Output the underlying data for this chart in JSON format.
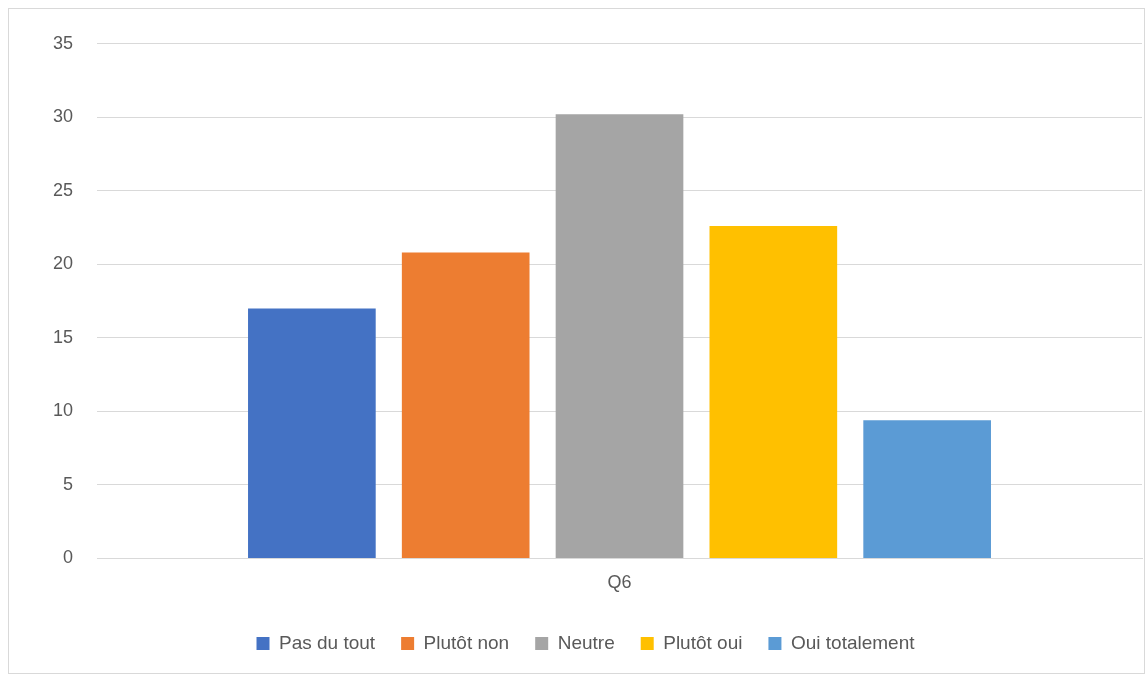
{
  "chart_data": {
    "type": "bar",
    "categories": [
      "Q6"
    ],
    "series": [
      {
        "name": "Pas du tout",
        "color": "#4472c4",
        "values": [
          17.0
        ]
      },
      {
        "name": "Plutôt non",
        "color": "#ed7d31",
        "values": [
          20.8
        ]
      },
      {
        "name": "Neutre",
        "color": "#a5a5a5",
        "values": [
          30.2
        ]
      },
      {
        "name": "Plutôt oui",
        "color": "#ffc000",
        "values": [
          22.6
        ]
      },
      {
        "name": "Oui totalement",
        "color": "#5b9bd5",
        "values": [
          9.4
        ]
      }
    ],
    "ylim": [
      0,
      35
    ],
    "yticks": [
      0,
      5,
      10,
      15,
      20,
      25,
      30,
      35
    ],
    "grid": "y",
    "legend": "bottom"
  }
}
